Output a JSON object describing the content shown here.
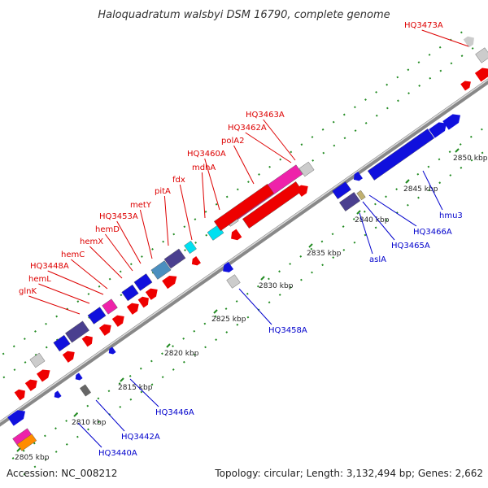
{
  "title": "Haloquadratum walsbyi DSM 16790, complete genome",
  "footer": {
    "accession": "Accession: NC_008212",
    "summary": "Topology: circular; Length: 3,132,494 bp; Genes: 2,662"
  },
  "colors": {
    "top_strand_label": "#dd0000",
    "bottom_strand_label": "#0000cc",
    "tick": "#228b22",
    "genome_line": "#888888"
  },
  "kbp_ticks": [
    {
      "label": "2805 kbp"
    },
    {
      "label": "2810 kbp"
    },
    {
      "label": "2815 kbp"
    },
    {
      "label": "2820 kbp"
    },
    {
      "label": "2825 kbp"
    },
    {
      "label": "2830 kbp"
    },
    {
      "label": "2835 kbp"
    },
    {
      "label": "2840 kbp"
    },
    {
      "label": "2845 kbp"
    },
    {
      "label": "2850 kbp"
    }
  ],
  "gene_labels_top": [
    {
      "text": "HQ3473A"
    },
    {
      "text": "HQ3463A"
    },
    {
      "text": "HQ3462A"
    },
    {
      "text": "polA2"
    },
    {
      "text": "HQ3460A"
    },
    {
      "text": "mdhA"
    },
    {
      "text": "fdx"
    },
    {
      "text": "pitA"
    },
    {
      "text": "metY"
    },
    {
      "text": "HQ3453A"
    },
    {
      "text": "hemD"
    },
    {
      "text": "hemX"
    },
    {
      "text": "hemC"
    },
    {
      "text": "HQ3448A"
    },
    {
      "text": "hemL"
    },
    {
      "text": "glnK"
    }
  ],
  "gene_labels_bottom": [
    {
      "text": "hmu3"
    },
    {
      "text": "HQ3466A"
    },
    {
      "text": "HQ3465A"
    },
    {
      "text": "aslA"
    },
    {
      "text": "HQ3458A"
    },
    {
      "text": "HQ3446A"
    },
    {
      "text": "HQ3442A"
    },
    {
      "text": "HQ3440A"
    }
  ]
}
